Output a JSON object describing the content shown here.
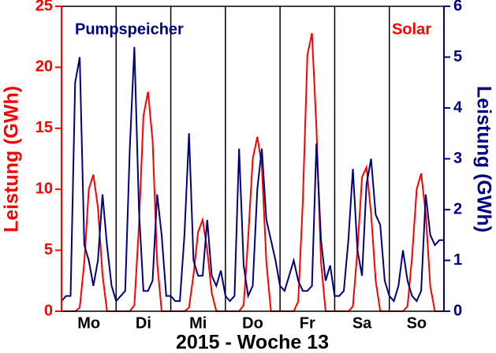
{
  "chart_data": {
    "type": "line",
    "xlabel": "2015 - Woche 13",
    "ylabel": "Leistung (GWh)",
    "y2label": "Leistung (GWh)",
    "x": [
      0,
      2,
      4,
      6,
      8,
      10,
      12,
      14,
      16,
      18,
      20,
      22,
      24,
      26,
      28,
      30,
      32,
      34,
      36,
      38,
      40,
      42,
      44,
      46,
      48,
      50,
      52,
      54,
      56,
      58,
      60,
      62,
      64,
      66,
      68,
      70,
      72,
      74,
      76,
      78,
      80,
      82,
      84,
      86,
      88,
      90,
      92,
      94,
      96,
      98,
      100,
      102,
      104,
      106,
      108,
      110,
      112,
      114,
      116,
      118,
      120,
      122,
      124,
      126,
      128,
      130,
      132,
      134,
      136,
      138,
      140,
      142,
      144,
      146,
      148,
      150,
      152,
      154,
      156,
      158,
      160,
      162,
      164,
      166,
      168
    ],
    "xlim": [
      0,
      168
    ],
    "xticks": [
      {
        "value": 12,
        "label": "Mo"
      },
      {
        "value": 36,
        "label": "Di"
      },
      {
        "value": 60,
        "label": "Mi"
      },
      {
        "value": 84,
        "label": "Do"
      },
      {
        "value": 108,
        "label": "Fr"
      },
      {
        "value": 132,
        "label": "Sa"
      },
      {
        "value": 156,
        "label": "So"
      }
    ],
    "xgrid": [
      24,
      48,
      72,
      96,
      120,
      144
    ],
    "ylim": [
      0,
      25
    ],
    "yticks": [
      0,
      5,
      10,
      15,
      20,
      25
    ],
    "y2lim": [
      0,
      6
    ],
    "y2ticks": [
      0,
      1,
      2,
      3,
      4,
      5,
      6
    ],
    "series": [
      {
        "name": "Solar",
        "color": "#ff0000",
        "values": [
          0,
          0,
          0,
          0,
          0.3,
          4,
          10,
          11.2,
          8.5,
          3,
          0,
          0,
          0,
          0,
          0,
          0,
          0.5,
          7,
          16,
          18,
          14,
          4,
          0,
          0,
          0,
          0,
          0,
          0,
          0.3,
          3,
          6.5,
          7.5,
          5,
          1.5,
          0,
          0,
          0,
          0,
          0,
          0,
          0.5,
          6,
          12.5,
          14.3,
          12,
          4,
          0,
          0,
          0,
          0,
          0,
          0,
          0.8,
          9,
          21,
          22.8,
          15,
          4,
          0,
          0,
          0,
          0,
          0,
          0,
          0.4,
          5,
          11,
          11.8,
          8,
          2.5,
          0,
          0,
          0,
          0,
          0,
          0,
          0.4,
          4.5,
          10,
          11.3,
          8,
          2,
          0,
          0,
          0
        ]
      },
      {
        "name": "Pumpspeicher",
        "color": "#000080",
        "axis": "y2",
        "values": [
          0.2,
          0.3,
          0.3,
          4.5,
          5.0,
          1.3,
          1.0,
          0.5,
          1.0,
          2.3,
          1.3,
          0.5,
          0.2,
          0.3,
          0.4,
          3.2,
          5.2,
          2.0,
          0.4,
          0.4,
          0.6,
          2.3,
          1.5,
          0.3,
          0.3,
          0.2,
          0.2,
          1.5,
          3.5,
          1.0,
          0.7,
          0.7,
          1.8,
          0.7,
          0.5,
          0.8,
          0.3,
          0.2,
          0.3,
          3.2,
          0.9,
          0.3,
          0.5,
          2.4,
          3.2,
          1.8,
          1.4,
          1.0,
          0.5,
          0.4,
          0.7,
          1.0,
          0.6,
          0.4,
          0.4,
          0.5,
          3.3,
          1.4,
          0.6,
          0.9,
          0.3,
          0.3,
          0.4,
          1.4,
          2.8,
          1.2,
          0.7,
          2.5,
          3.0,
          1.9,
          1.7,
          0.6,
          0.3,
          0.2,
          0.5,
          1.2,
          0.6,
          0.3,
          0.2,
          0.4,
          2.3,
          1.5,
          1.3,
          1.4,
          1.4
        ]
      }
    ]
  }
}
